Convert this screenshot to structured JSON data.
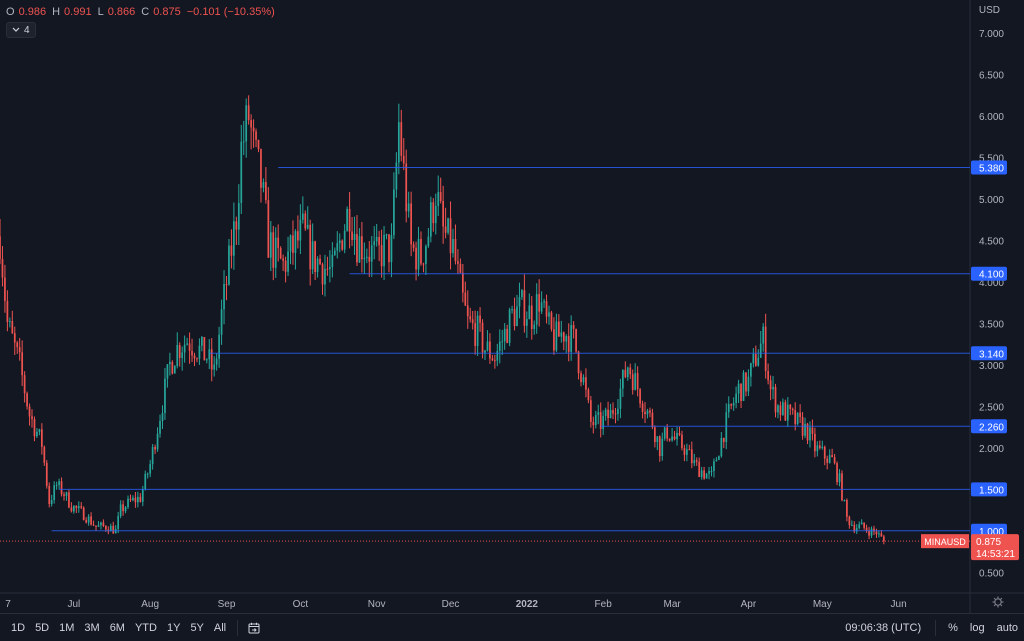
{
  "legend": {
    "open_key": "O",
    "open": "0.986",
    "high_key": "H",
    "high": "0.991",
    "low_key": "L",
    "low": "0.866",
    "close_key": "C",
    "close": "0.875",
    "change": "−0.101 (−10.35%)",
    "indicator_count": "4"
  },
  "currency": "USD",
  "price_label": {
    "symbol": "MINAUSD",
    "price": "0.875",
    "countdown": "14:53:21"
  },
  "toolbar": {
    "ranges": [
      "1D",
      "5D",
      "1M",
      "3M",
      "6M",
      "YTD",
      "1Y",
      "5Y",
      "All"
    ],
    "clock": "09:06:38 (UTC)",
    "percent": "%",
    "log": "log",
    "auto": "auto"
  },
  "chart_data": {
    "type": "candlestick",
    "y_axis": {
      "range": [
        0.25,
        7.4
      ],
      "ticks": [
        "7.000",
        "6.500",
        "6.000",
        "5.500",
        "5.000",
        "4.500",
        "4.000",
        "3.500",
        "3.000",
        "2.500",
        "2.000",
        "1.500",
        "1.000",
        "0.500"
      ]
    },
    "x_axis": {
      "range": [
        "2021-06-01",
        "2022-06-30"
      ],
      "ticks": [
        {
          "date": "2021-06-01",
          "label": "7"
        },
        {
          "date": "2021-07-01",
          "label": "Jul"
        },
        {
          "date": "2021-08-01",
          "label": "Aug"
        },
        {
          "date": "2021-09-01",
          "label": "Sep"
        },
        {
          "date": "2021-10-01",
          "label": "Oct"
        },
        {
          "date": "2021-11-01",
          "label": "Nov"
        },
        {
          "date": "2021-12-01",
          "label": "Dec"
        },
        {
          "date": "2022-01-01",
          "label": "2022"
        },
        {
          "date": "2022-02-01",
          "label": "Feb"
        },
        {
          "date": "2022-03-01",
          "label": "Mar"
        },
        {
          "date": "2022-04-01",
          "label": "Apr"
        },
        {
          "date": "2022-05-01",
          "label": "May"
        },
        {
          "date": "2022-06-01",
          "label": "Jun"
        }
      ]
    },
    "horizontal_levels": [
      {
        "value": 5.38,
        "label": "5.380",
        "start": "2021-09-22"
      },
      {
        "value": 4.1,
        "label": "4.100",
        "start": "2021-10-21"
      },
      {
        "value": 3.14,
        "label": "3.140",
        "start": "2021-08-25"
      },
      {
        "value": 2.26,
        "label": "2.260",
        "start": "2022-01-31"
      },
      {
        "value": 1.5,
        "label": "1.500",
        "start": "2021-06-25"
      },
      {
        "value": 1.0,
        "label": "1.000",
        "start": "2021-06-22"
      }
    ],
    "last_price": 0.875,
    "colors": {
      "up": "#26a69a",
      "down": "#ef5350",
      "level": "#2962ff",
      "level_label": "#2962ff",
      "last_price": "#ef5350"
    },
    "path": [
      [
        "2021-06-01",
        4.55
      ],
      [
        "2021-06-04",
        3.5
      ],
      [
        "2021-06-09",
        3.0
      ],
      [
        "2021-06-13",
        2.4
      ],
      [
        "2021-06-18",
        2.05
      ],
      [
        "2021-06-21",
        1.35
      ],
      [
        "2021-06-24",
        1.55
      ],
      [
        "2021-06-27",
        1.45
      ],
      [
        "2021-06-30",
        1.3
      ],
      [
        "2021-07-05",
        1.2
      ],
      [
        "2021-07-10",
        1.05
      ],
      [
        "2021-07-15",
        1.05
      ],
      [
        "2021-07-18",
        1.0
      ],
      [
        "2021-07-20",
        1.25
      ],
      [
        "2021-07-24",
        1.35
      ],
      [
        "2021-07-28",
        1.4
      ],
      [
        "2021-08-01",
        1.8
      ],
      [
        "2021-08-05",
        2.4
      ],
      [
        "2021-08-09",
        3.0
      ],
      [
        "2021-08-12",
        3.2
      ],
      [
        "2021-08-16",
        3.3
      ],
      [
        "2021-08-20",
        3.2
      ],
      [
        "2021-08-24",
        3.1
      ],
      [
        "2021-08-27",
        2.9
      ],
      [
        "2021-08-30",
        3.6
      ],
      [
        "2021-09-02",
        4.2
      ],
      [
        "2021-09-05",
        4.8
      ],
      [
        "2021-09-07",
        5.6
      ],
      [
        "2021-09-10",
        6.0
      ],
      [
        "2021-09-12",
        5.6
      ],
      [
        "2021-09-15",
        5.2
      ],
      [
        "2021-09-18",
        4.5
      ],
      [
        "2021-09-21",
        4.3
      ],
      [
        "2021-09-24",
        4.2
      ],
      [
        "2021-09-28",
        4.4
      ],
      [
        "2021-10-02",
        4.6
      ],
      [
        "2021-10-06",
        4.3
      ],
      [
        "2021-10-10",
        4.2
      ],
      [
        "2021-10-14",
        4.1
      ],
      [
        "2021-10-18",
        4.6
      ],
      [
        "2021-10-21",
        4.9
      ],
      [
        "2021-10-24",
        4.5
      ],
      [
        "2021-10-28",
        4.4
      ],
      [
        "2021-11-01",
        4.3
      ],
      [
        "2021-11-04",
        4.4
      ],
      [
        "2021-11-07",
        4.4
      ],
      [
        "2021-11-10",
        5.9
      ],
      [
        "2021-11-12",
        5.3
      ],
      [
        "2021-11-15",
        4.4
      ],
      [
        "2021-11-19",
        4.3
      ],
      [
        "2021-11-22",
        4.6
      ],
      [
        "2021-11-25",
        5.1
      ],
      [
        "2021-11-28",
        4.6
      ],
      [
        "2021-12-02",
        4.4
      ],
      [
        "2021-12-05",
        3.9
      ],
      [
        "2021-12-08",
        3.5
      ],
      [
        "2021-12-12",
        3.4
      ],
      [
        "2021-12-15",
        3.2
      ],
      [
        "2021-12-19",
        3.1
      ],
      [
        "2021-12-22",
        3.3
      ],
      [
        "2021-12-26",
        3.6
      ],
      [
        "2021-12-30",
        3.7
      ],
      [
        "2022-01-03",
        3.6
      ],
      [
        "2022-01-06",
        3.8
      ],
      [
        "2022-01-09",
        3.5
      ],
      [
        "2022-01-12",
        3.3
      ],
      [
        "2022-01-16",
        3.4
      ],
      [
        "2022-01-20",
        3.3
      ],
      [
        "2022-01-24",
        2.8
      ],
      [
        "2022-01-27",
        2.3
      ],
      [
        "2022-01-31",
        2.3
      ],
      [
        "2022-02-04",
        2.4
      ],
      [
        "2022-02-08",
        2.7
      ],
      [
        "2022-02-11",
        3.0
      ],
      [
        "2022-02-14",
        2.8
      ],
      [
        "2022-02-18",
        2.5
      ],
      [
        "2022-02-21",
        2.3
      ],
      [
        "2022-02-24",
        2.0
      ],
      [
        "2022-02-27",
        2.2
      ],
      [
        "2022-03-02",
        2.1
      ],
      [
        "2022-03-06",
        2.0
      ],
      [
        "2022-03-10",
        1.8
      ],
      [
        "2022-03-14",
        1.7
      ],
      [
        "2022-03-17",
        1.65
      ],
      [
        "2022-03-20",
        2.0
      ],
      [
        "2022-03-24",
        2.4
      ],
      [
        "2022-03-28",
        2.7
      ],
      [
        "2022-04-01",
        2.8
      ],
      [
        "2022-04-04",
        3.1
      ],
      [
        "2022-04-07",
        3.3
      ],
      [
        "2022-04-10",
        2.7
      ],
      [
        "2022-04-13",
        2.5
      ],
      [
        "2022-04-17",
        2.4
      ],
      [
        "2022-04-21",
        2.3
      ],
      [
        "2022-04-25",
        2.2
      ],
      [
        "2022-04-28",
        2.0
      ],
      [
        "2022-05-02",
        1.9
      ],
      [
        "2022-05-05",
        1.85
      ],
      [
        "2022-05-08",
        1.6
      ],
      [
        "2022-05-11",
        1.15
      ],
      [
        "2022-05-14",
        1.05
      ],
      [
        "2022-05-17",
        1.05
      ],
      [
        "2022-05-20",
        1.0
      ],
      [
        "2022-05-23",
        0.98
      ],
      [
        "2022-05-26",
        0.875
      ]
    ]
  }
}
